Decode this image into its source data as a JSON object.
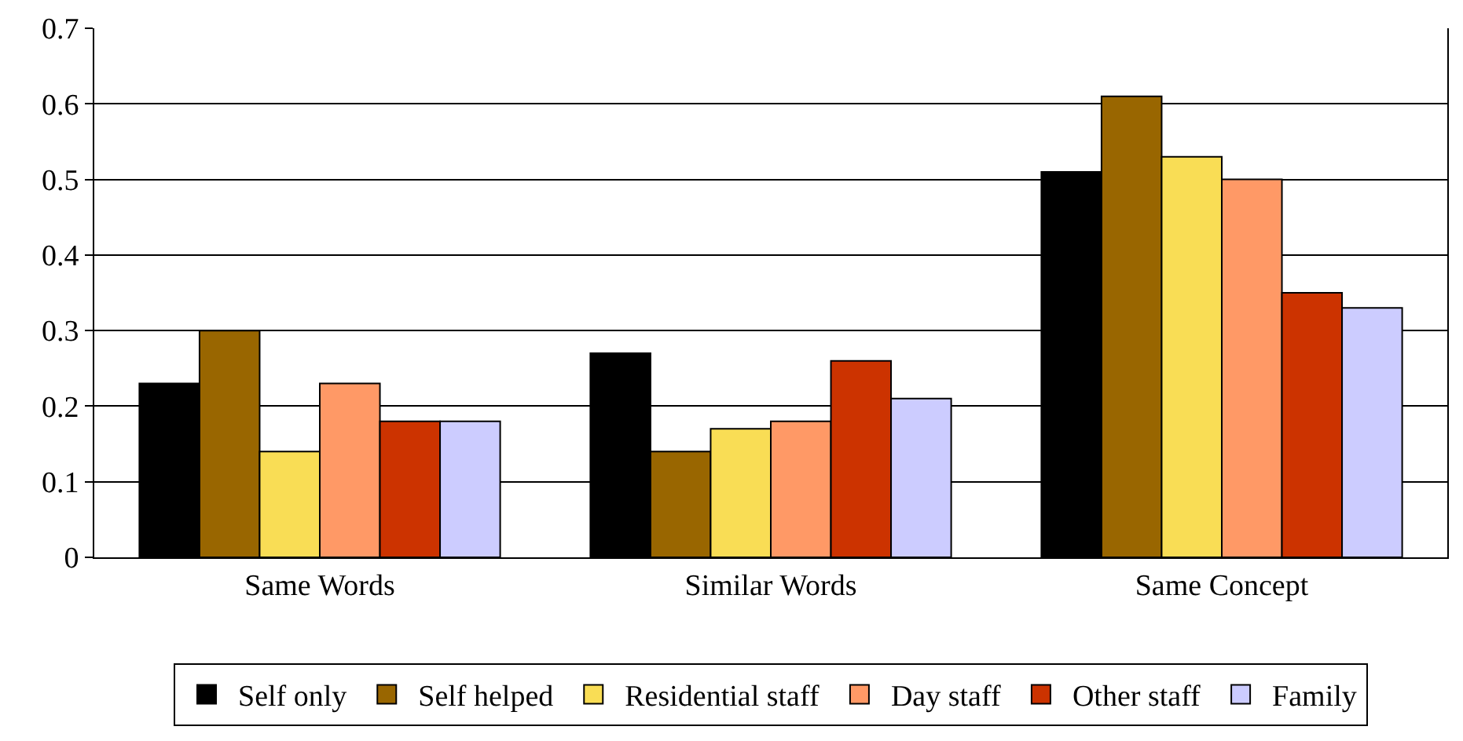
{
  "chart_data": {
    "type": "bar",
    "categories": [
      "Same Words",
      "Similar Words",
      "Same Concept"
    ],
    "series": [
      {
        "name": "Self only",
        "color": "#000000",
        "values": [
          0.23,
          0.27,
          0.51
        ]
      },
      {
        "name": "Self helped",
        "color": "#996600",
        "values": [
          0.3,
          0.14,
          0.61
        ]
      },
      {
        "name": "Residential staff",
        "color": "#f9dd55",
        "values": [
          0.14,
          0.17,
          0.53
        ]
      },
      {
        "name": "Day staff",
        "color": "#ff9966",
        "values": [
          0.23,
          0.18,
          0.5
        ]
      },
      {
        "name": "Other staff",
        "color": "#cc3300",
        "values": [
          0.18,
          0.26,
          0.35
        ]
      },
      {
        "name": "Family",
        "color": "#ccccff",
        "values": [
          0.18,
          0.21,
          0.33
        ]
      }
    ],
    "ylim": [
      0,
      0.7
    ],
    "yticks": [
      0,
      0.1,
      0.2,
      0.3,
      0.4,
      0.5,
      0.6,
      0.7
    ],
    "grid": "y",
    "legend": "bottom"
  }
}
